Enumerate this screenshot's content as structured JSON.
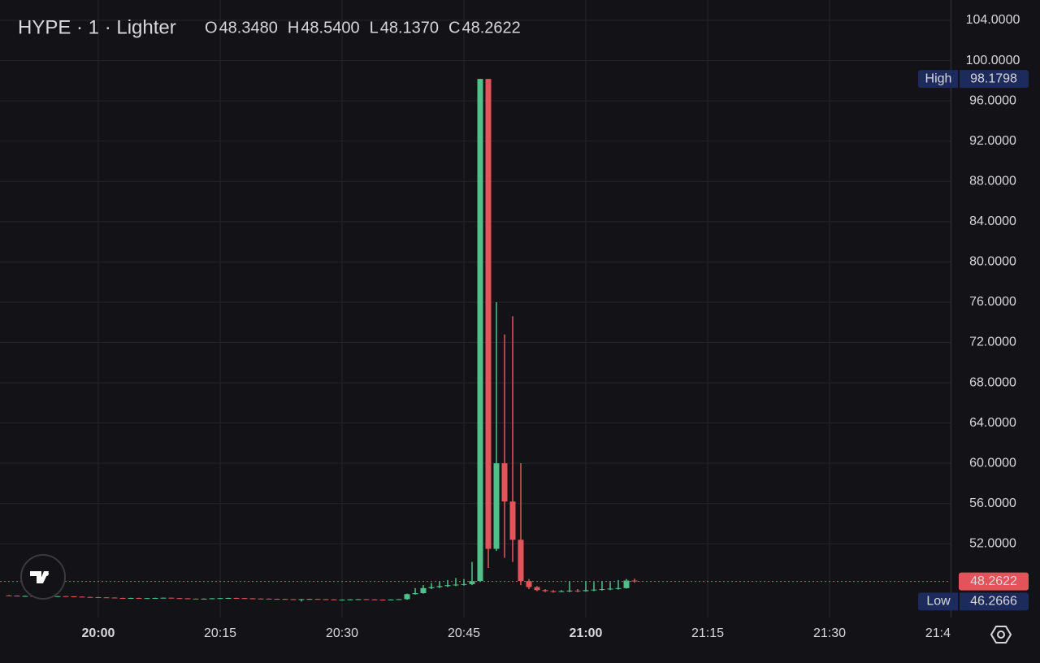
{
  "chart_data": {
    "type": "candlestick",
    "title": "HYPE · 1 · Lighter",
    "legend": [
      {
        "key": "O",
        "value": "48.3480"
      },
      {
        "key": "H",
        "value": "48.5400"
      },
      {
        "key": "L",
        "value": "48.1370"
      },
      {
        "key": "C",
        "value": "48.2622"
      }
    ],
    "up_color": "#4fc28c",
    "down_color": "#e3545a",
    "grid": true,
    "x": [
      1189,
      1190,
      1191,
      1192,
      1193,
      1194,
      1195,
      1196,
      1197,
      1198,
      1199,
      1200,
      1201,
      1202,
      1203,
      1204,
      1205,
      1206,
      1207,
      1208,
      1209,
      1210,
      1211,
      1212,
      1213,
      1214,
      1215,
      1216,
      1217,
      1218,
      1219,
      1220,
      1221,
      1222,
      1223,
      1224,
      1225,
      1226,
      1227,
      1228,
      1229,
      1230,
      1231,
      1232,
      1233,
      1234,
      1235,
      1236,
      1237,
      1238,
      1239,
      1240,
      1241,
      1242,
      1243,
      1244,
      1245,
      1246,
      1247,
      1248,
      1249,
      1250,
      1251,
      1252,
      1253,
      1254,
      1255,
      1256,
      1257,
      1258,
      1259,
      1260,
      1261,
      1262,
      1263,
      1264,
      1265,
      1266
    ],
    "open": [
      46.88,
      46.85,
      46.8,
      46.82,
      46.78,
      46.8,
      46.76,
      46.8,
      46.78,
      46.75,
      46.72,
      46.7,
      46.68,
      46.66,
      46.62,
      46.6,
      46.62,
      46.58,
      46.6,
      46.62,
      46.64,
      46.6,
      46.58,
      46.55,
      46.52,
      46.55,
      46.58,
      46.6,
      46.62,
      46.6,
      46.58,
      46.56,
      46.55,
      46.53,
      46.52,
      46.5,
      46.48,
      46.5,
      46.52,
      46.5,
      46.48,
      46.45,
      46.46,
      46.48,
      46.5,
      46.48,
      46.46,
      46.45,
      46.47,
      46.5,
      47.0,
      47.1,
      47.6,
      47.7,
      47.8,
      47.9,
      47.95,
      48.0,
      48.3,
      98.1798,
      51.5,
      60.0,
      56.2,
      52.4,
      48.3,
      47.7,
      47.4,
      47.3,
      47.25,
      47.3,
      47.35,
      47.3,
      47.4,
      47.45,
      47.5,
      47.55,
      47.6,
      48.348
    ],
    "high": [
      46.92,
      46.88,
      46.85,
      46.84,
      46.82,
      46.82,
      46.82,
      46.82,
      46.8,
      46.77,
      46.74,
      46.72,
      46.7,
      46.68,
      46.64,
      46.64,
      46.64,
      46.62,
      46.64,
      46.66,
      46.66,
      46.62,
      46.6,
      46.57,
      46.57,
      46.6,
      46.62,
      46.64,
      46.64,
      46.62,
      46.6,
      46.58,
      46.57,
      46.55,
      46.54,
      46.52,
      46.52,
      46.54,
      46.54,
      46.52,
      46.5,
      46.48,
      46.5,
      46.52,
      46.52,
      46.5,
      46.48,
      46.49,
      46.52,
      47.05,
      47.6,
      47.9,
      48.1,
      48.3,
      48.4,
      48.6,
      48.5,
      50.2,
      98.1798,
      98.1798,
      76.0,
      72.8,
      74.6,
      60.0,
      48.5,
      47.8,
      47.5,
      47.4,
      47.4,
      48.3,
      47.5,
      48.3,
      48.2,
      48.3,
      48.2,
      48.4,
      48.5,
      48.54
    ],
    "low": [
      46.82,
      46.78,
      46.78,
      46.75,
      46.76,
      46.74,
      46.74,
      46.76,
      46.72,
      46.7,
      46.68,
      46.66,
      46.64,
      46.6,
      46.58,
      46.58,
      46.56,
      46.56,
      46.58,
      46.6,
      46.58,
      46.56,
      46.53,
      46.5,
      46.5,
      46.53,
      46.56,
      46.58,
      46.58,
      46.56,
      46.54,
      46.53,
      46.51,
      46.5,
      46.48,
      46.46,
      46.2666,
      46.48,
      46.48,
      46.46,
      46.43,
      46.43,
      46.44,
      46.46,
      46.46,
      46.44,
      46.43,
      46.43,
      46.45,
      46.45,
      46.95,
      47.05,
      47.5,
      47.6,
      47.7,
      47.8,
      47.85,
      47.9,
      48.2,
      49.6,
      51.3,
      50.6,
      50.2,
      47.9,
      47.5,
      47.3,
      47.2,
      47.15,
      47.2,
      47.2,
      47.2,
      47.25,
      47.3,
      47.35,
      47.4,
      47.45,
      47.55,
      48.137
    ],
    "close": [
      46.85,
      46.8,
      46.82,
      46.78,
      46.8,
      46.76,
      46.8,
      46.78,
      46.75,
      46.72,
      46.7,
      46.68,
      46.66,
      46.62,
      46.6,
      46.62,
      46.58,
      46.6,
      46.62,
      46.64,
      46.6,
      46.58,
      46.55,
      46.52,
      46.55,
      46.58,
      46.6,
      46.62,
      46.6,
      46.58,
      46.56,
      46.55,
      46.53,
      46.52,
      46.5,
      46.48,
      46.5,
      46.52,
      46.5,
      46.48,
      46.45,
      46.46,
      46.48,
      46.5,
      46.48,
      46.46,
      46.45,
      46.47,
      46.5,
      47.0,
      47.1,
      47.6,
      47.7,
      47.8,
      47.9,
      47.95,
      48.0,
      48.3,
      98.1798,
      51.5,
      60.0,
      56.2,
      52.4,
      48.3,
      47.7,
      47.4,
      47.3,
      47.25,
      47.3,
      47.35,
      47.3,
      47.4,
      47.45,
      47.5,
      47.55,
      47.6,
      48.348,
      48.2622
    ],
    "xlim": [
      1187.9,
      1304.9
    ],
    "xticks": [
      {
        "value": 1200,
        "label": "20:00"
      },
      {
        "value": 1215,
        "label": "20:15"
      },
      {
        "value": 1230,
        "label": "20:30"
      },
      {
        "value": 1245,
        "label": "20:45"
      },
      {
        "value": 1260,
        "label": "21:00"
      },
      {
        "value": 1275,
        "label": "21:15"
      },
      {
        "value": 1290,
        "label": "21:30"
      },
      {
        "value": 1305,
        "label": "21:4"
      }
    ],
    "ylim": [
      44.68,
      106.02
    ],
    "yticks": [
      {
        "value": 52,
        "label": "52.0000"
      },
      {
        "value": 56,
        "label": "56.0000"
      },
      {
        "value": 60,
        "label": "60.0000"
      },
      {
        "value": 64,
        "label": "64.0000"
      },
      {
        "value": 68,
        "label": "68.0000"
      },
      {
        "value": 72,
        "label": "72.0000"
      },
      {
        "value": 76,
        "label": "76.0000"
      },
      {
        "value": 80,
        "label": "80.0000"
      },
      {
        "value": 84,
        "label": "84.0000"
      },
      {
        "value": 88,
        "label": "88.0000"
      },
      {
        "value": 92,
        "label": "92.0000"
      },
      {
        "value": 96,
        "label": "96.0000"
      },
      {
        "value": 100,
        "label": "100.0000"
      },
      {
        "value": 104,
        "label": "104.0000"
      }
    ],
    "high_marker": {
      "name": "High",
      "value": 98.1798,
      "label": "98.1798"
    },
    "low_marker": {
      "name": "Low",
      "value": 46.2666,
      "label": "46.2666"
    },
    "last_price": {
      "value": 48.2622,
      "label": "48.2622"
    }
  }
}
